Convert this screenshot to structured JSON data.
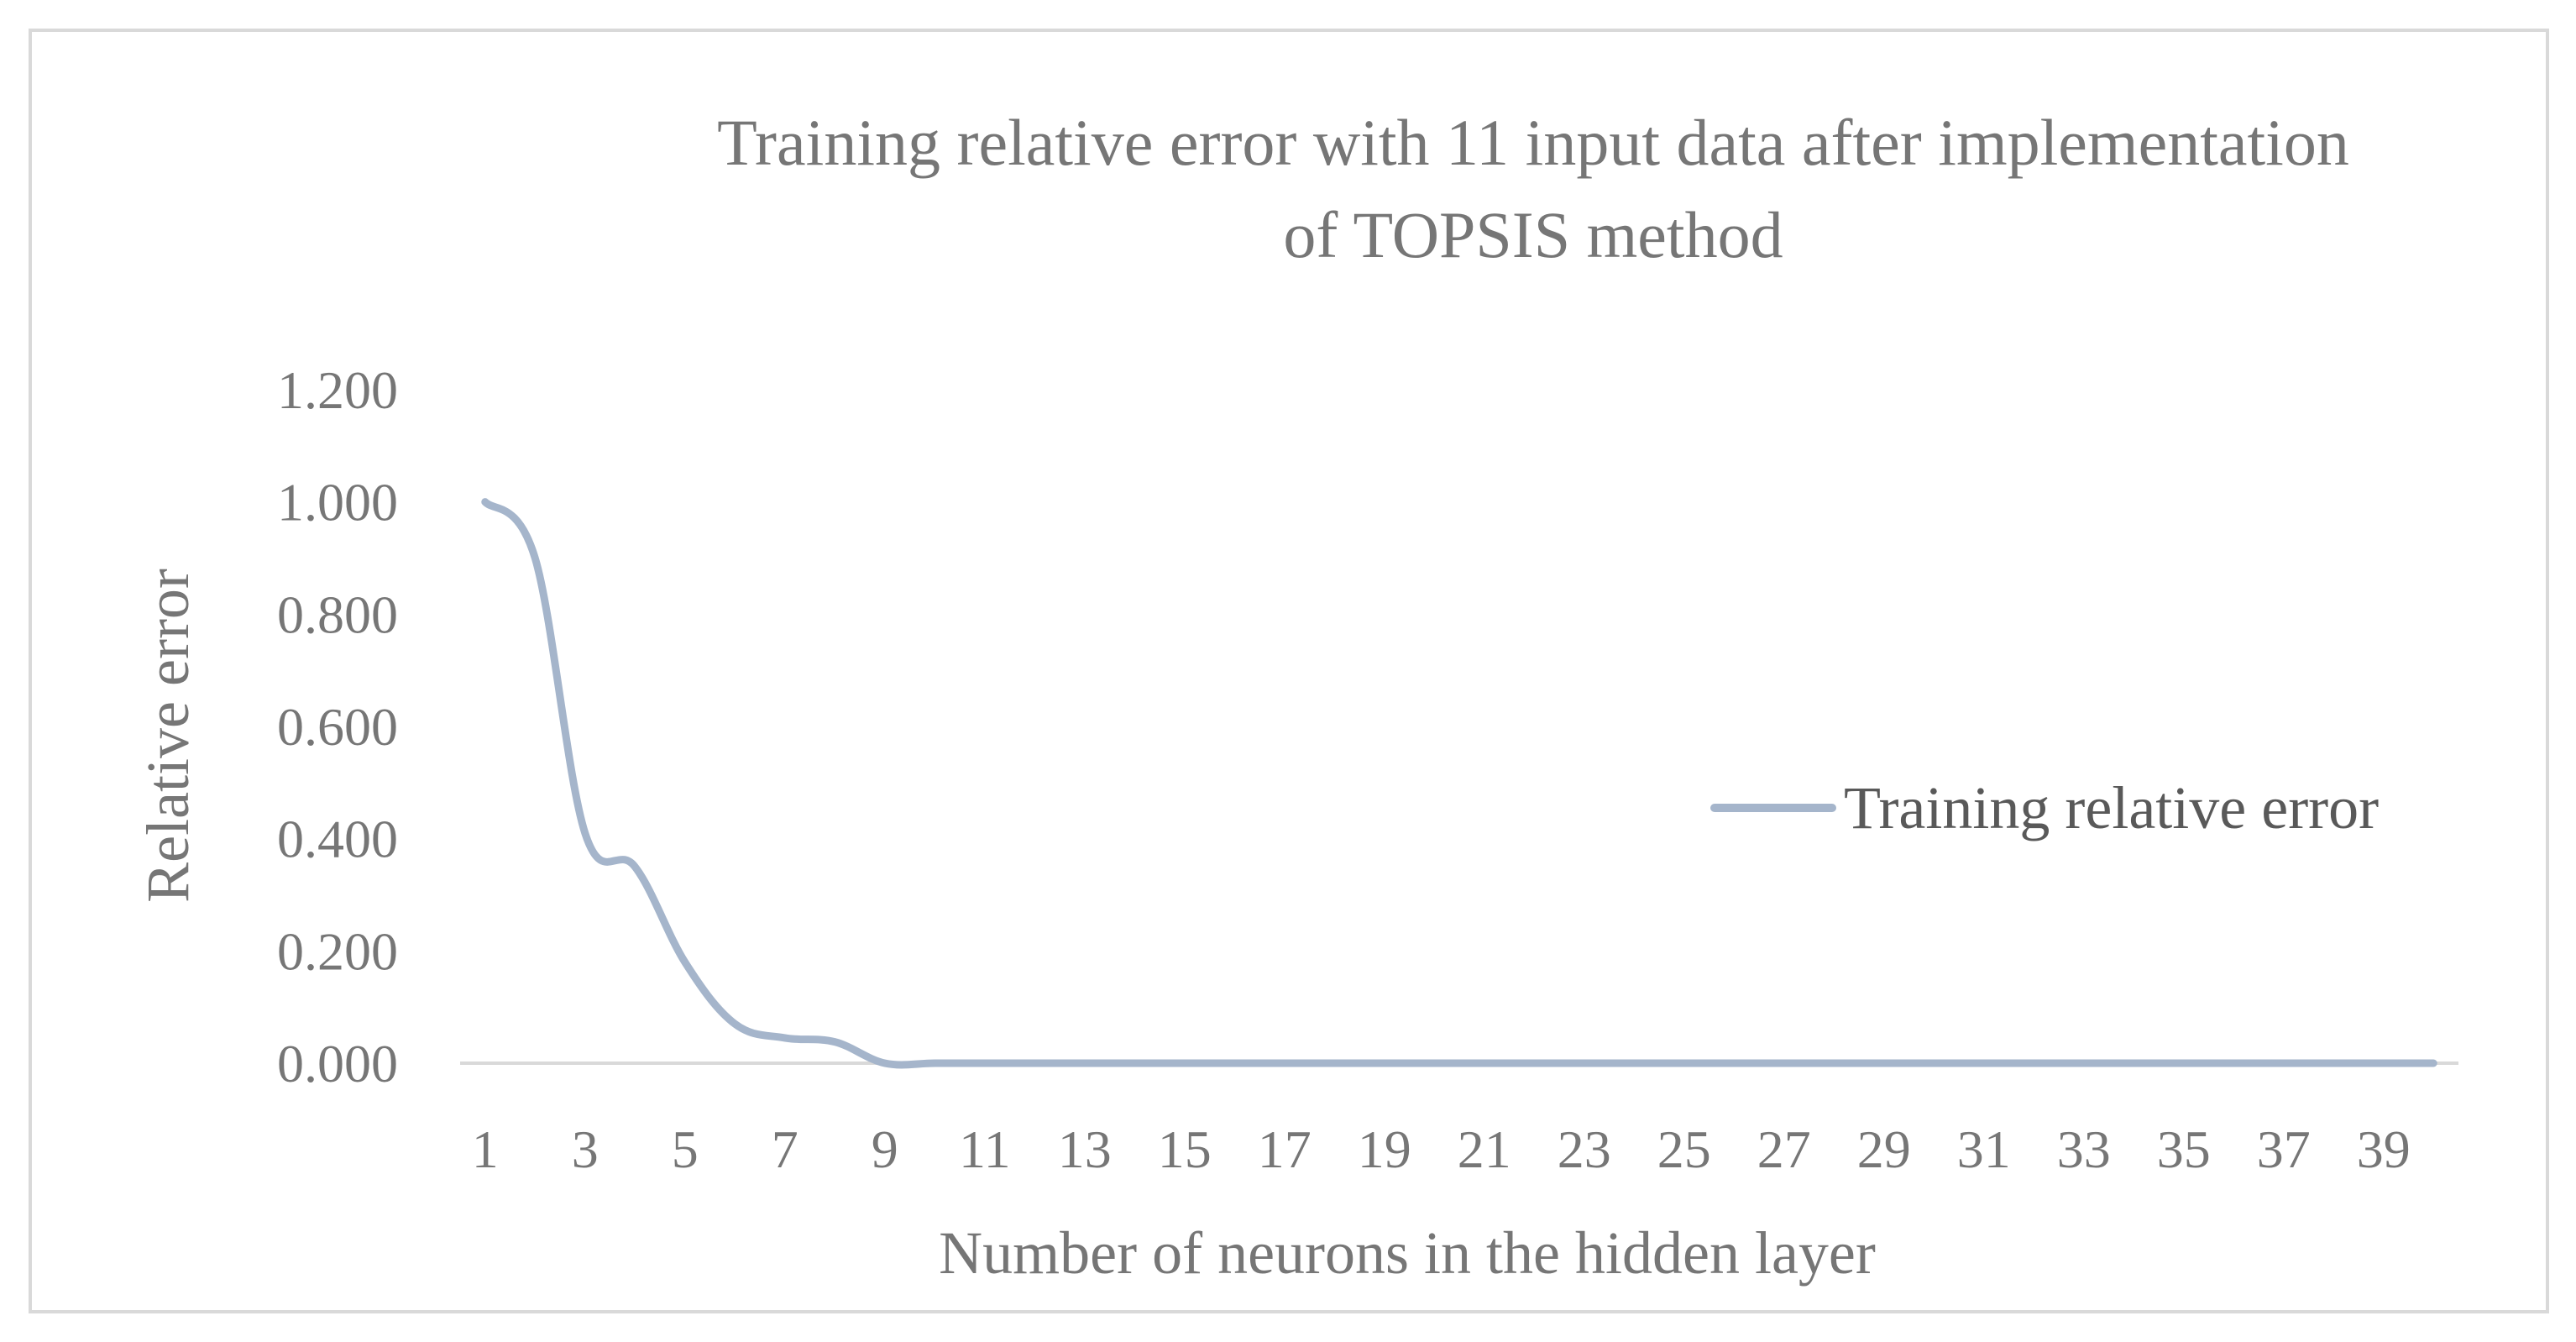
{
  "chart_data": {
    "type": "line",
    "title_lines": [
      "Training relative error with 11 input data after implementation",
      "of TOPSIS method"
    ],
    "xlabel": "Number of neurons in the hidden layer",
    "ylabel": "Relative error",
    "x": [
      1,
      2,
      3,
      4,
      5,
      6,
      7,
      8,
      9,
      10,
      11,
      12,
      13,
      14,
      15,
      16,
      17,
      18,
      19,
      20,
      21,
      22,
      23,
      24,
      25,
      26,
      27,
      28,
      29,
      30,
      31,
      32,
      33,
      34,
      35,
      36,
      37,
      38,
      39,
      40
    ],
    "x_tick_labels": [
      "1",
      "3",
      "5",
      "7",
      "9",
      "11",
      "13",
      "15",
      "17",
      "19",
      "21",
      "23",
      "25",
      "27",
      "29",
      "31",
      "33",
      "35",
      "37",
      "39"
    ],
    "y_tick_labels": [
      "0.000",
      "0.200",
      "0.400",
      "0.600",
      "0.800",
      "1.000",
      "1.200"
    ],
    "ylim": [
      0,
      1.2
    ],
    "grid": false,
    "legend_position": "right",
    "series": [
      {
        "name": "Training relative error",
        "color": "#a5b5cb",
        "values": [
          1.0,
          0.9,
          0.41,
          0.35,
          0.18,
          0.07,
          0.045,
          0.038,
          0.0,
          0.0,
          0.0,
          0.0,
          0.0,
          0.0,
          0.0,
          0.0,
          0.0,
          0.0,
          0.0,
          0.0,
          0.0,
          0.0,
          0.0,
          0.0,
          0.0,
          0.0,
          0.0,
          0.0,
          0.0,
          0.0,
          0.0,
          0.0,
          0.0,
          0.0,
          0.0,
          0.0,
          0.0,
          0.0,
          0.0,
          0.0
        ]
      }
    ]
  }
}
